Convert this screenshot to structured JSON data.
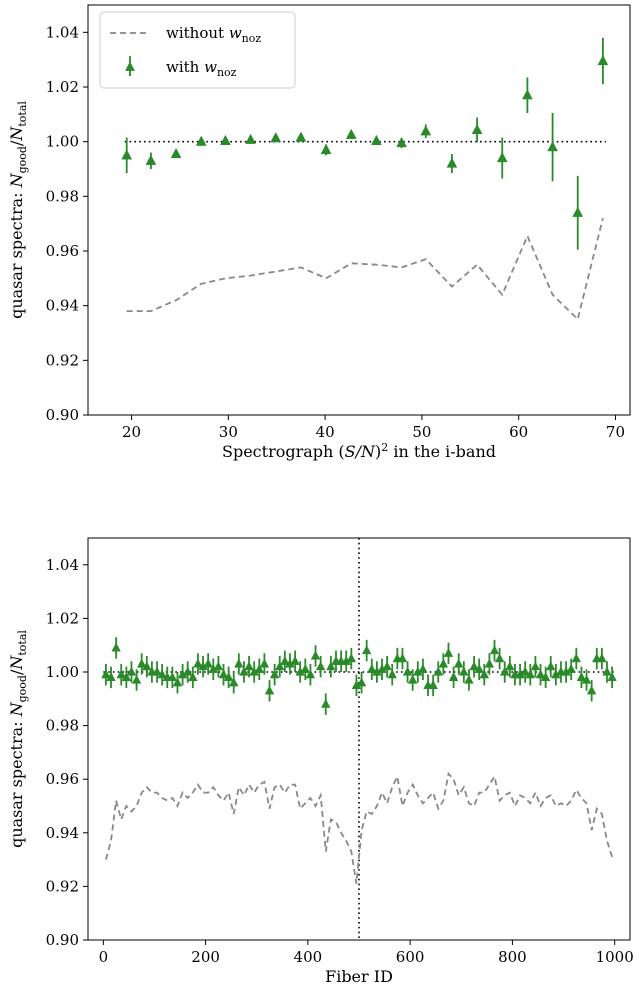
{
  "chart_data": [
    {
      "type": "scatter",
      "xlabel": "Spectrograph (S/N)² in the i-band",
      "ylabel": "quasar spectra: N_good/N_total",
      "xlim": [
        15.5,
        71.5
      ],
      "ylim": [
        0.9,
        1.05
      ],
      "xticks": [
        20,
        30,
        40,
        50,
        60,
        70
      ],
      "yticks": [
        0.9,
        0.92,
        0.94,
        0.96,
        0.98,
        1.0,
        1.02,
        1.04
      ],
      "reference_line": 1.0,
      "legend": {
        "position": "top-left",
        "without": "without w_noz",
        "with": "with w_noz"
      },
      "series": [
        {
          "name": "without w_noz",
          "style": "dashed line",
          "x": [
            19.5,
            22.0,
            24.6,
            27.2,
            29.7,
            32.3,
            34.9,
            37.5,
            40.1,
            42.7,
            45.3,
            47.9,
            50.4,
            53.1,
            55.7,
            58.3,
            60.9,
            63.5,
            66.1,
            68.7
          ],
          "y": [
            0.938,
            0.938,
            0.942,
            0.948,
            0.95,
            0.951,
            0.9525,
            0.954,
            0.95,
            0.9555,
            0.955,
            0.954,
            0.957,
            0.947,
            0.955,
            0.944,
            0.9655,
            0.944,
            0.935,
            0.972
          ]
        },
        {
          "name": "with w_noz",
          "style": "triangle markers with error bars",
          "x": [
            19.5,
            22.0,
            24.6,
            27.2,
            29.7,
            32.3,
            34.9,
            37.5,
            40.1,
            42.7,
            45.3,
            47.9,
            50.4,
            53.1,
            55.7,
            58.3,
            60.9,
            63.5,
            66.1,
            68.7
          ],
          "y": [
            0.995,
            0.993,
            0.9955,
            1.0,
            1.0003,
            1.0007,
            1.0013,
            1.0015,
            0.997,
            1.0025,
            1.0003,
            0.9995,
            1.0038,
            0.992,
            1.0043,
            0.994,
            1.017,
            0.998,
            0.974,
            1.0295
          ],
          "err": [
            0.0065,
            0.003,
            0.0015,
            0.0015,
            0.0012,
            0.0012,
            0.0012,
            0.0015,
            0.002,
            0.0015,
            0.0015,
            0.0018,
            0.0025,
            0.0035,
            0.0045,
            0.0075,
            0.0065,
            0.0125,
            0.0135,
            0.0085
          ]
        }
      ]
    },
    {
      "type": "scatter",
      "xlabel": "Fiber ID",
      "ylabel": "quasar spectra: N_good/N_total",
      "xlim": [
        -30,
        1030
      ],
      "ylim": [
        0.9,
        1.05
      ],
      "xticks": [
        0,
        200,
        400,
        600,
        800,
        1000
      ],
      "yticks": [
        0.9,
        0.92,
        0.94,
        0.96,
        0.98,
        1.0,
        1.02,
        1.04
      ],
      "reference_line": 1.0,
      "vertical_line": 500,
      "series": [
        {
          "name": "without w_noz",
          "style": "dashed line",
          "x": [
            5,
            15,
            25,
            35,
            45,
            55,
            65,
            75,
            85,
            95,
            105,
            115,
            125,
            135,
            145,
            155,
            165,
            175,
            185,
            195,
            205,
            215,
            225,
            235,
            245,
            255,
            265,
            275,
            285,
            295,
            305,
            315,
            325,
            335,
            345,
            355,
            365,
            375,
            385,
            395,
            405,
            415,
            425,
            435,
            445,
            455,
            465,
            475,
            485,
            495,
            505,
            515,
            525,
            535,
            545,
            555,
            565,
            575,
            585,
            595,
            605,
            615,
            625,
            635,
            645,
            655,
            665,
            675,
            685,
            695,
            705,
            715,
            725,
            735,
            745,
            755,
            765,
            775,
            785,
            795,
            805,
            815,
            825,
            835,
            845,
            855,
            865,
            875,
            885,
            895,
            905,
            915,
            925,
            935,
            945,
            955,
            965,
            975,
            985,
            995
          ],
          "y": [
            0.93,
            0.937,
            0.952,
            0.945,
            0.95,
            0.948,
            0.95,
            0.955,
            0.957,
            0.955,
            0.955,
            0.953,
            0.952,
            0.953,
            0.95,
            0.955,
            0.953,
            0.955,
            0.958,
            0.955,
            0.955,
            0.957,
            0.954,
            0.952,
            0.955,
            0.947,
            0.957,
            0.954,
            0.958,
            0.955,
            0.958,
            0.959,
            0.949,
            0.957,
            0.958,
            0.955,
            0.958,
            0.958,
            0.949,
            0.951,
            0.953,
            0.95,
            0.954,
            0.933,
            0.945,
            0.944,
            0.94,
            0.937,
            0.933,
            0.921,
            0.941,
            0.948,
            0.947,
            0.95,
            0.955,
            0.951,
            0.957,
            0.961,
            0.95,
            0.955,
            0.958,
            0.954,
            0.951,
            0.953,
            0.955,
            0.949,
            0.952,
            0.962,
            0.96,
            0.954,
            0.957,
            0.951,
            0.95,
            0.955,
            0.955,
            0.958,
            0.961,
            0.952,
            0.954,
            0.955,
            0.95,
            0.954,
            0.953,
            0.951,
            0.955,
            0.95,
            0.953,
            0.954,
            0.95,
            0.951,
            0.95,
            0.952,
            0.956,
            0.953,
            0.951,
            0.941,
            0.949,
            0.947,
            0.937,
            0.931
          ]
        },
        {
          "name": "with w_noz",
          "style": "triangle markers with error bars",
          "x": [
            5,
            15,
            25,
            35,
            45,
            55,
            65,
            75,
            85,
            95,
            105,
            115,
            125,
            135,
            145,
            155,
            165,
            175,
            185,
            195,
            205,
            215,
            225,
            235,
            245,
            255,
            265,
            275,
            285,
            295,
            305,
            315,
            325,
            335,
            345,
            355,
            365,
            375,
            385,
            395,
            405,
            415,
            425,
            435,
            445,
            455,
            465,
            475,
            485,
            495,
            505,
            515,
            525,
            535,
            545,
            555,
            565,
            575,
            585,
            595,
            605,
            615,
            625,
            635,
            645,
            655,
            665,
            675,
            685,
            695,
            705,
            715,
            725,
            735,
            745,
            755,
            765,
            775,
            785,
            795,
            805,
            815,
            825,
            835,
            845,
            855,
            865,
            875,
            885,
            895,
            905,
            915,
            925,
            935,
            945,
            955,
            965,
            975,
            985,
            995
          ],
          "y": [
            0.999,
            0.998,
            1.009,
            0.999,
            0.998,
            1.0,
            0.997,
            1.003,
            1.002,
            1.0,
            1.0,
            0.999,
            0.998,
            0.998,
            0.996,
            0.999,
            1.0,
            0.998,
            1.003,
            1.002,
            1.003,
            1.001,
            1.002,
            0.999,
            0.998,
            0.996,
            1.003,
            1.0,
            1.002,
            1.0,
            1.001,
            1.003,
            0.993,
            0.999,
            1.002,
            1.004,
            1.003,
            1.004,
            1.0,
            1.001,
            0.999,
            1.006,
            1.002,
            0.988,
            1.002,
            1.004,
            1.004,
            1.004,
            1.005,
            0.995,
            0.996,
            1.008,
            1.001,
            1.0,
            1.001,
            1.002,
            0.999,
            1.005,
            1.005,
            1.0,
            0.997,
            1.0,
            1.001,
            0.995,
            0.995,
            1.0,
            1.003,
            1.007,
            0.998,
            1.003,
            1.0,
            0.997,
            1.002,
            1.001,
            0.999,
            1.003,
            1.008,
            1.005,
            1.0,
            1.002,
            0.999,
            0.999,
            1.0,
            0.999,
            1.002,
            0.999,
            0.998,
            1.002,
            0.999,
            1.0,
            1.0,
            1.001,
            1.005,
            0.998,
            0.997,
            0.993,
            1.005,
            1.005,
            1.0,
            0.998
          ],
          "err": [
            0.004,
            0.004,
            0.004,
            0.004,
            0.004,
            0.004,
            0.004,
            0.004,
            0.004,
            0.004,
            0.004,
            0.004,
            0.004,
            0.004,
            0.004,
            0.004,
            0.004,
            0.004,
            0.004,
            0.004,
            0.004,
            0.004,
            0.004,
            0.004,
            0.004,
            0.004,
            0.004,
            0.004,
            0.004,
            0.004,
            0.004,
            0.004,
            0.004,
            0.004,
            0.004,
            0.004,
            0.004,
            0.004,
            0.004,
            0.004,
            0.004,
            0.004,
            0.004,
            0.004,
            0.004,
            0.004,
            0.004,
            0.004,
            0.004,
            0.004,
            0.004,
            0.004,
            0.004,
            0.004,
            0.004,
            0.004,
            0.004,
            0.004,
            0.004,
            0.004,
            0.004,
            0.004,
            0.004,
            0.004,
            0.004,
            0.004,
            0.004,
            0.004,
            0.004,
            0.004,
            0.004,
            0.004,
            0.004,
            0.004,
            0.004,
            0.004,
            0.004,
            0.004,
            0.004,
            0.004,
            0.004,
            0.004,
            0.004,
            0.004,
            0.004,
            0.004,
            0.004,
            0.004,
            0.004,
            0.004,
            0.004,
            0.004,
            0.004,
            0.004,
            0.004,
            0.004,
            0.004,
            0.004,
            0.004,
            0.004
          ]
        }
      ]
    }
  ],
  "colors": {
    "with": "#2a8a2a",
    "without": "#888888",
    "reference": "#000000"
  }
}
